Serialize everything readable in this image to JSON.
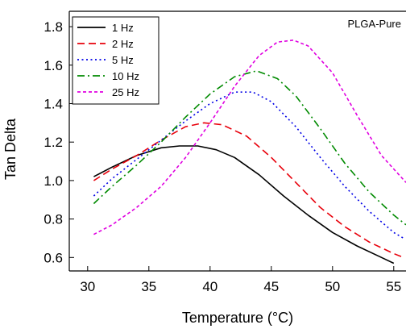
{
  "chart_data": {
    "type": "line",
    "title": "",
    "annotation": "PLGA-Pure",
    "xlabel": "Temperature (°C)",
    "ylabel": "Tan Delta",
    "xlim": [
      28.5,
      56
    ],
    "ylim": [
      0.53,
      1.88
    ],
    "xticks": [
      30,
      35,
      40,
      45,
      50,
      55
    ],
    "yticks": [
      0.6,
      0.8,
      1.0,
      1.2,
      1.4,
      1.6,
      1.8
    ],
    "ytick_labels": [
      "0.6",
      "0.8",
      "1.0",
      "1.2",
      "1.4",
      "1.6",
      "1.8"
    ],
    "legend_position": "top-left",
    "grid": false,
    "series": [
      {
        "name": "1 Hz",
        "color": "#000000",
        "dash": "solid",
        "x": [
          30.5,
          32,
          34,
          36,
          37.5,
          39,
          40.5,
          42,
          44,
          46,
          48,
          50,
          52,
          54,
          55
        ],
        "y": [
          1.02,
          1.07,
          1.13,
          1.17,
          1.18,
          1.18,
          1.16,
          1.12,
          1.03,
          0.92,
          0.82,
          0.73,
          0.66,
          0.6,
          0.57
        ]
      },
      {
        "name": "2 Hz",
        "color": "#e8000b",
        "dash": "dashed",
        "x": [
          30.5,
          32,
          34,
          36,
          38,
          39.5,
          41,
          43,
          45,
          47,
          49,
          51,
          53,
          55,
          55.8
        ],
        "y": [
          1.0,
          1.06,
          1.13,
          1.21,
          1.28,
          1.3,
          1.29,
          1.23,
          1.12,
          0.99,
          0.86,
          0.76,
          0.68,
          0.62,
          0.6
        ]
      },
      {
        "name": "5 Hz",
        "color": "#0000e6",
        "dash": "dotted",
        "x": [
          30.5,
          32,
          34,
          36,
          38,
          40,
          42,
          43.5,
          45,
          47,
          49,
          51,
          53,
          55,
          55.8
        ],
        "y": [
          0.92,
          1.01,
          1.11,
          1.21,
          1.31,
          1.4,
          1.46,
          1.46,
          1.41,
          1.28,
          1.12,
          0.97,
          0.84,
          0.73,
          0.7
        ]
      },
      {
        "name": "10 Hz",
        "color": "#008a00",
        "dash": "dashdot",
        "x": [
          30.5,
          32,
          34,
          36,
          38,
          40,
          42,
          43.8,
          45.5,
          47,
          49,
          51,
          53,
          55,
          56
        ],
        "y": [
          0.88,
          0.97,
          1.08,
          1.2,
          1.33,
          1.45,
          1.54,
          1.57,
          1.53,
          1.44,
          1.27,
          1.09,
          0.94,
          0.82,
          0.77
        ]
      },
      {
        "name": "25 Hz",
        "color": "#e000e0",
        "dash": "shortdash",
        "x": [
          30.5,
          32,
          34,
          36,
          38,
          40,
          42,
          44,
          45.5,
          46.8,
          48,
          50,
          52,
          54,
          56
        ],
        "y": [
          0.72,
          0.77,
          0.86,
          0.97,
          1.12,
          1.3,
          1.49,
          1.65,
          1.72,
          1.73,
          1.7,
          1.56,
          1.34,
          1.13,
          0.99
        ]
      }
    ]
  }
}
